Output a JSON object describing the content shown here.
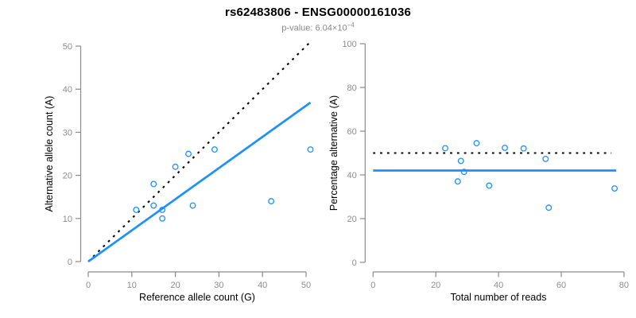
{
  "header": {
    "title": "rs62483806 - ENSG00000161036",
    "subtitle_prefix": "p-value: 6.04×10",
    "subtitle_exponent": "−4"
  },
  "colors": {
    "accent_blue": "#1E90FF",
    "line_black": "#000000",
    "axis_gray": "#8a8a8a",
    "tick_label_gray": "#8c8c8c",
    "axis_title_black": "#000000",
    "subtitle_gray": "#888888"
  },
  "chart_data": [
    {
      "type": "scatter",
      "name": "allele-counts",
      "xlabel": "Reference allele count (G)",
      "ylabel": "Alternative allele count (A)",
      "xlim": [
        0,
        51.5
      ],
      "ylim": [
        0,
        51.5
      ],
      "xticks": [
        0,
        10,
        20,
        30,
        40,
        50
      ],
      "yticks": [
        0,
        10,
        20,
        30,
        40,
        50
      ],
      "grid": false,
      "legend": null,
      "point_color": "#1E90FF",
      "points": [
        [
          11,
          12
        ],
        [
          15,
          13
        ],
        [
          15,
          18
        ],
        [
          17,
          10
        ],
        [
          17,
          12
        ],
        [
          20,
          22
        ],
        [
          23,
          25
        ],
        [
          24,
          13
        ],
        [
          29,
          26
        ],
        [
          42,
          14
        ],
        [
          51,
          26
        ]
      ],
      "lines": [
        {
          "name": "identity-line",
          "style": "dotted",
          "color": "#000000",
          "x1": 0,
          "y1": 0,
          "x2": 51,
          "y2": 51
        },
        {
          "name": "fit-line",
          "style": "solid",
          "color": "#1E90FF",
          "x1": 0,
          "y1": 0,
          "x2": 51,
          "y2": 36.9
        }
      ]
    },
    {
      "type": "scatter",
      "name": "percentage-alternative",
      "xlabel": "Total number of reads",
      "ylabel": "Percentage alternative (A)",
      "xlim": [
        0,
        81
      ],
      "ylim": [
        0,
        103
      ],
      "xticks": [
        0,
        20,
        40,
        60,
        80
      ],
      "yticks": [
        0,
        20,
        40,
        60,
        80,
        100
      ],
      "grid": false,
      "legend": null,
      "point_color": "#1E90FF",
      "points": [
        [
          23,
          52.2
        ],
        [
          27,
          37.0
        ],
        [
          28,
          46.4
        ],
        [
          29,
          41.4
        ],
        [
          33,
          54.5
        ],
        [
          37,
          35.1
        ],
        [
          42,
          52.4
        ],
        [
          48,
          52.1
        ],
        [
          55,
          47.3
        ],
        [
          56,
          25.0
        ],
        [
          77,
          33.8
        ]
      ],
      "lines": [
        {
          "name": "fifty-percent-line",
          "style": "dotted",
          "color": "#000000",
          "x1": 0,
          "y1": 50,
          "x2": 76,
          "y2": 50
        },
        {
          "name": "mean-percentage-line",
          "style": "solid",
          "color": "#1E90FF",
          "x1": 0,
          "y1": 42,
          "x2": 77.5,
          "y2": 42
        }
      ]
    }
  ]
}
